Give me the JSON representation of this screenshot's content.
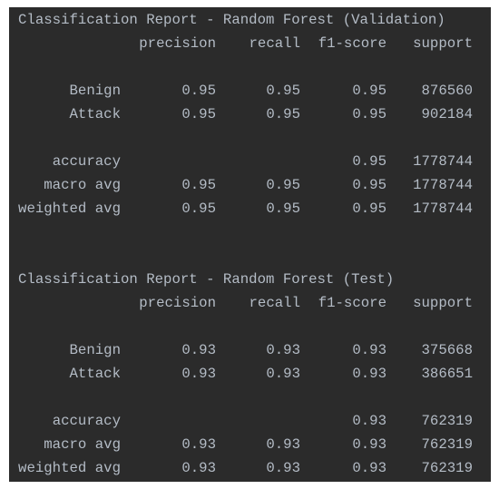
{
  "reports": [
    {
      "title": "Classification Report - Random Forest (Validation)",
      "headers": [
        "precision",
        "recall",
        "f1-score",
        "support"
      ],
      "rows": [
        {
          "label": "Benign",
          "precision": 0.95,
          "recall": 0.95,
          "f1-score": 0.95,
          "support": 876560
        },
        {
          "label": "Attack",
          "precision": 0.95,
          "recall": 0.95,
          "f1-score": 0.95,
          "support": 902184
        },
        {
          "label": "accuracy",
          "f1-score": 0.95,
          "support": 1778744
        },
        {
          "label": "macro avg",
          "precision": 0.95,
          "recall": 0.95,
          "f1-score": 0.95,
          "support": 1778744
        },
        {
          "label": "weighted avg",
          "precision": 0.95,
          "recall": 0.95,
          "f1-score": 0.95,
          "support": 1778744
        }
      ]
    },
    {
      "title": "Classification Report - Random Forest (Test)",
      "headers": [
        "precision",
        "recall",
        "f1-score",
        "support"
      ],
      "rows": [
        {
          "label": "Benign",
          "precision": 0.93,
          "recall": 0.93,
          "f1-score": 0.93,
          "support": 375668
        },
        {
          "label": "Attack",
          "precision": 0.93,
          "recall": 0.93,
          "f1-score": 0.93,
          "support": 386651
        },
        {
          "label": "accuracy",
          "f1-score": 0.93,
          "support": 762319
        },
        {
          "label": "macro avg",
          "precision": 0.93,
          "recall": 0.93,
          "f1-score": 0.93,
          "support": 762319
        },
        {
          "label": "weighted avg",
          "precision": 0.93,
          "recall": 0.93,
          "f1-score": 0.93,
          "support": 762319
        }
      ]
    }
  ]
}
